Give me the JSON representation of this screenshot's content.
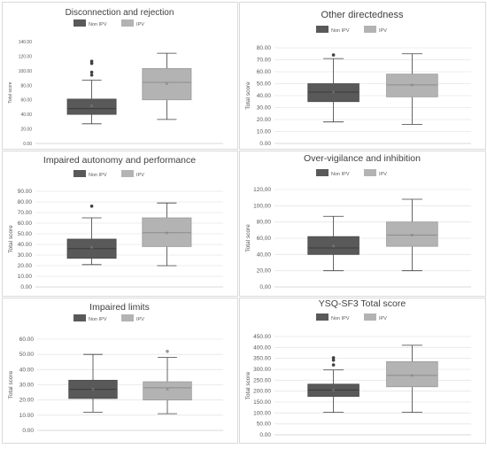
{
  "legend": {
    "non_ipv": "Non IPV",
    "ipv": "IPV"
  },
  "colors": {
    "non_ipv": "#595959",
    "ipv": "#b3b3b3",
    "border": "#d9d9d9",
    "grid": "#e6e6e6",
    "text": "#404040",
    "tick": "#595959"
  },
  "chart_data": [
    {
      "type": "box",
      "title": "Disconnection and rejection",
      "ylabel": "Total score",
      "ylim": [
        0,
        140
      ],
      "yticks": [
        "0.00",
        "20.00",
        "40.00",
        "60.00",
        "80.00",
        "100.00",
        "120.00",
        "140.00"
      ],
      "grid": false,
      "legend_position": "top",
      "series": [
        {
          "name": "Non IPV",
          "whisker_low": 27,
          "q1": 40,
          "median": 48,
          "q3": 61,
          "whisker_high": 87,
          "mean": 52,
          "outliers": [
            94,
            98,
            110,
            113
          ]
        },
        {
          "name": "IPV",
          "whisker_low": 33,
          "q1": 60,
          "median": 84,
          "q3": 103,
          "whisker_high": 124,
          "mean": 82,
          "outliers": []
        }
      ]
    },
    {
      "type": "box",
      "title": "Other directedness",
      "ylabel": "Total score",
      "ylim": [
        0,
        80
      ],
      "yticks": [
        "0.00",
        "10.00",
        "20.00",
        "30.00",
        "40.00",
        "50.00",
        "60.00",
        "70.00",
        "80.00"
      ],
      "grid": true,
      "legend_position": "top",
      "series": [
        {
          "name": "Non IPV",
          "whisker_low": 18,
          "q1": 35,
          "median": 43,
          "q3": 50,
          "whisker_high": 71,
          "mean": 43,
          "outliers": [
            74
          ]
        },
        {
          "name": "IPV",
          "whisker_low": 16,
          "q1": 39,
          "median": 49,
          "q3": 58,
          "whisker_high": 75,
          "mean": 49,
          "outliers": []
        }
      ]
    },
    {
      "type": "box",
      "title": "Impaired autonomy and performance",
      "ylabel": "Total score",
      "ylim": [
        0,
        90
      ],
      "yticks": [
        "0.00",
        "10.00",
        "20.00",
        "30.00",
        "40.00",
        "50.00",
        "60.00",
        "70.00",
        "80.00",
        "90.00"
      ],
      "grid": true,
      "legend_position": "top",
      "series": [
        {
          "name": "Non IPV",
          "whisker_low": 21,
          "q1": 27,
          "median": 36,
          "q3": 45,
          "whisker_high": 65,
          "mean": 37,
          "outliers": [
            76
          ]
        },
        {
          "name": "IPV",
          "whisker_low": 20,
          "q1": 38,
          "median": 51,
          "q3": 65,
          "whisker_high": 79,
          "mean": 51,
          "outliers": []
        }
      ]
    },
    {
      "type": "box",
      "title": "Over-vigilance and inhibition",
      "ylabel": "Total score",
      "ylim": [
        0,
        120
      ],
      "yticks": [
        "0,00",
        "20,00",
        "40,00",
        "60,00",
        "80,00",
        "100,00",
        "120,00"
      ],
      "grid": true,
      "legend_position": "top",
      "series": [
        {
          "name": "Non IPV",
          "whisker_low": 20,
          "q1": 40,
          "median": 48,
          "q3": 62,
          "whisker_high": 87,
          "mean": 50,
          "outliers": []
        },
        {
          "name": "IPV",
          "whisker_low": 20,
          "q1": 50,
          "median": 64,
          "q3": 80,
          "whisker_high": 108,
          "mean": 64,
          "outliers": []
        }
      ]
    },
    {
      "type": "box",
      "title": "Impaired limits",
      "ylabel": "Total score",
      "ylim": [
        0,
        60
      ],
      "yticks": [
        "0.00",
        "10.00",
        "20.00",
        "30.00",
        "40.00",
        "50.00",
        "60.00"
      ],
      "grid": true,
      "legend_position": "top",
      "series": [
        {
          "name": "Non IPV",
          "whisker_low": 12,
          "q1": 21,
          "median": 27,
          "q3": 33,
          "whisker_high": 50,
          "mean": 27,
          "outliers": []
        },
        {
          "name": "IPV",
          "whisker_low": 11,
          "q1": 20,
          "median": 28,
          "q3": 32,
          "whisker_high": 48,
          "mean": 27,
          "outliers": [
            52
          ]
        }
      ]
    },
    {
      "type": "box",
      "title": "YSQ-SF3 Total score",
      "ylabel": "Total score",
      "ylim": [
        0,
        450
      ],
      "yticks": [
        "0.00",
        "50.00",
        "100.00",
        "150.00",
        "200.00",
        "250.00",
        "300.00",
        "350.00",
        "400.00",
        "450.00"
      ],
      "grid": true,
      "legend_position": "top",
      "series": [
        {
          "name": "Non IPV",
          "whisker_low": 103,
          "q1": 176,
          "median": 205,
          "q3": 232,
          "whisker_high": 297,
          "mean": 205,
          "outliers": [
            320,
            342,
            353
          ]
        },
        {
          "name": "IPV",
          "whisker_low": 103,
          "q1": 220,
          "median": 272,
          "q3": 335,
          "whisker_high": 410,
          "mean": 272,
          "outliers": []
        }
      ]
    }
  ]
}
